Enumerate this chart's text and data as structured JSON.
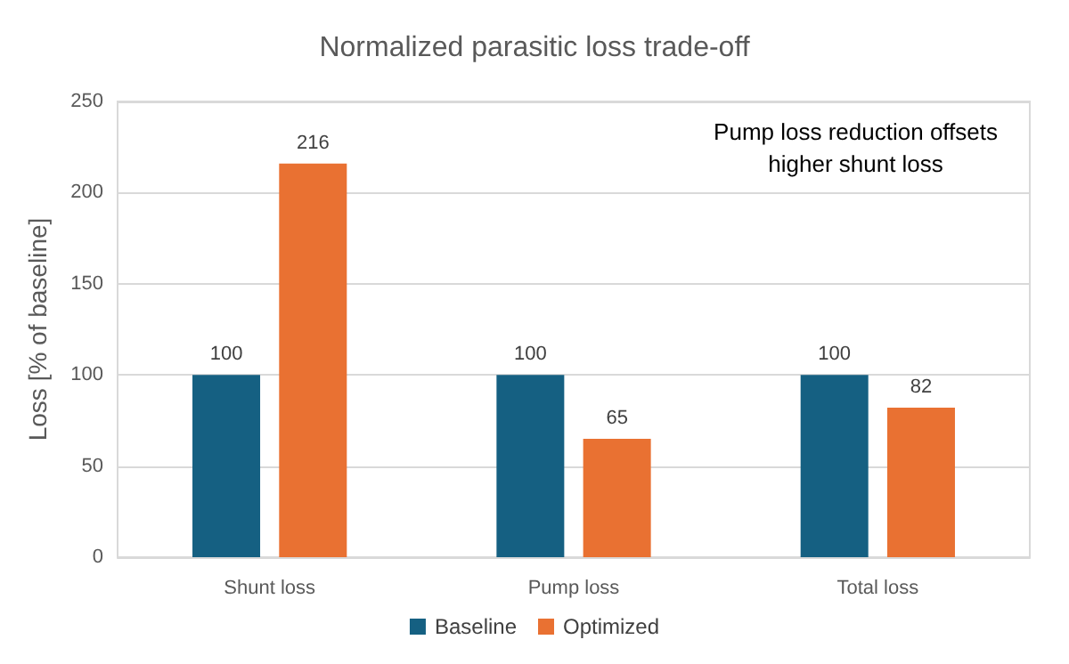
{
  "chart_data": {
    "type": "bar",
    "title": "Normalized parasitic loss trade-off",
    "ylabel": "Loss [% of baseline]",
    "categories": [
      "Shunt loss",
      "Pump loss",
      "Total loss"
    ],
    "series": [
      {
        "name": "Baseline",
        "color": "#156082",
        "values": [
          100,
          100,
          100
        ]
      },
      {
        "name": "Optimized",
        "color": "#e97132",
        "values": [
          216,
          65,
          82
        ]
      }
    ],
    "ylim": [
      0,
      250
    ],
    "yticks": [
      0,
      50,
      100,
      150,
      200,
      250
    ],
    "grid": "y",
    "legend": "bottom",
    "data_labels": true,
    "annotations": [
      "Pump loss reduction offsets\nhigher shunt loss"
    ]
  }
}
